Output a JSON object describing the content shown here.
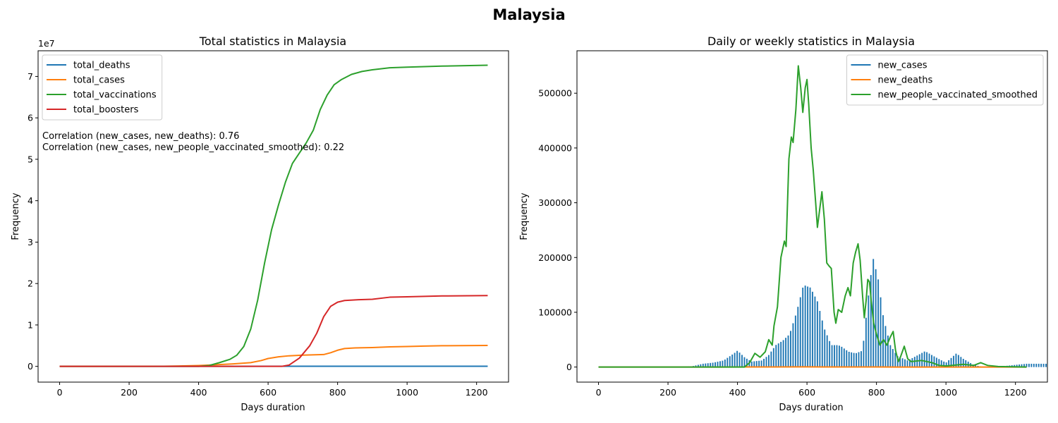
{
  "suptitle": "Malaysia",
  "chart_data": [
    {
      "type": "line",
      "title": "Total statistics in Malaysia",
      "xlabel": "Days duration",
      "ylabel": "Frequency",
      "y_offset_label": "1e7",
      "xlim": [
        -62,
        1292
      ],
      "ylim": [
        -3800000,
        76200000
      ],
      "xticks": [
        0,
        200,
        400,
        600,
        800,
        1000,
        1200
      ],
      "xtick_labels": [
        "0",
        "200",
        "400",
        "600",
        "800",
        "1000",
        "1200"
      ],
      "yticks": [
        0,
        10000000,
        20000000,
        30000000,
        40000000,
        50000000,
        60000000,
        70000000
      ],
      "ytick_labels": [
        "0",
        "1",
        "2",
        "3",
        "4",
        "5",
        "6",
        "7"
      ],
      "legend_position": "upper-left",
      "annotations": [
        "Correlation (new_cases, new_deaths): 0.76",
        "Correlation (new_cases, new_people_vaccinated_smoothed): 0.22"
      ],
      "series": [
        {
          "name": "total_deaths",
          "color": "#1f77b4",
          "points": [
            [
              0,
              0
            ],
            [
              400,
              1000
            ],
            [
              500,
              10000
            ],
            [
              600,
              25000
            ],
            [
              700,
              29000
            ],
            [
              800,
              35000
            ],
            [
              900,
              36500
            ],
            [
              1000,
              36800
            ],
            [
              1232,
              37000
            ]
          ]
        },
        {
          "name": "total_cases",
          "color": "#ff7f0e",
          "points": [
            [
              0,
              0
            ],
            [
              300,
              20000
            ],
            [
              400,
              200000
            ],
            [
              430,
              300000
            ],
            [
              500,
              600000
            ],
            [
              550,
              900000
            ],
            [
              580,
              1400000
            ],
            [
              600,
              1900000
            ],
            [
              630,
              2300000
            ],
            [
              660,
              2550000
            ],
            [
              700,
              2700000
            ],
            [
              760,
              2850000
            ],
            [
              780,
              3300000
            ],
            [
              800,
              3900000
            ],
            [
              820,
              4300000
            ],
            [
              850,
              4450000
            ],
            [
              900,
              4550000
            ],
            [
              950,
              4700000
            ],
            [
              1000,
              4800000
            ],
            [
              1050,
              4900000
            ],
            [
              1100,
              4980000
            ],
            [
              1232,
              5050000
            ]
          ]
        },
        {
          "name": "total_vaccinations",
          "color": "#2ca02c",
          "points": [
            [
              0,
              0
            ],
            [
              400,
              0
            ],
            [
              430,
              200000
            ],
            [
              460,
              900000
            ],
            [
              490,
              1700000
            ],
            [
              510,
              2700000
            ],
            [
              530,
              4800000
            ],
            [
              550,
              9000000
            ],
            [
              570,
              16000000
            ],
            [
              590,
              25000000
            ],
            [
              610,
              33000000
            ],
            [
              630,
              39000000
            ],
            [
              650,
              44500000
            ],
            [
              670,
              49000000
            ],
            [
              690,
              51500000
            ],
            [
              710,
              54000000
            ],
            [
              730,
              57000000
            ],
            [
              750,
              62000000
            ],
            [
              770,
              65500000
            ],
            [
              790,
              68000000
            ],
            [
              810,
              69200000
            ],
            [
              840,
              70500000
            ],
            [
              870,
              71200000
            ],
            [
              900,
              71600000
            ],
            [
              950,
              72100000
            ],
            [
              1000,
              72250000
            ],
            [
              1100,
              72500000
            ],
            [
              1232,
              72700000
            ]
          ]
        },
        {
          "name": "total_boosters",
          "color": "#d62728",
          "points": [
            [
              0,
              0
            ],
            [
              640,
              0
            ],
            [
              660,
              300000
            ],
            [
              690,
              2000000
            ],
            [
              720,
              5000000
            ],
            [
              740,
              8000000
            ],
            [
              760,
              12000000
            ],
            [
              780,
              14500000
            ],
            [
              800,
              15500000
            ],
            [
              820,
              15900000
            ],
            [
              860,
              16100000
            ],
            [
              900,
              16200000
            ],
            [
              950,
              16700000
            ],
            [
              1000,
              16800000
            ],
            [
              1100,
              17000000
            ],
            [
              1232,
              17100000
            ]
          ]
        }
      ]
    },
    {
      "type": "bar+line",
      "title": "Daily or weekly statistics in Malaysia",
      "xlabel": "Days duration",
      "ylabel": "Frequency",
      "xlim": [
        -62,
        1292
      ],
      "ylim": [
        -27500,
        577500
      ],
      "xticks": [
        0,
        200,
        400,
        600,
        800,
        1000,
        1200
      ],
      "xtick_labels": [
        "0",
        "200",
        "400",
        "600",
        "800",
        "1000",
        "1200"
      ],
      "yticks": [
        0,
        100000,
        200000,
        300000,
        400000,
        500000
      ],
      "ytick_labels": [
        "0",
        "100000",
        "200000",
        "300000",
        "400000",
        "500000"
      ],
      "legend_position": "upper-right",
      "bars": {
        "name": "new_cases",
        "color": "#1f77b4",
        "interval_days": 7,
        "points": [
          [
            0,
            0
          ],
          [
            80,
            0
          ],
          [
            130,
            1000
          ],
          [
            200,
            100
          ],
          [
            270,
            1500
          ],
          [
            300,
            6000
          ],
          [
            330,
            8000
          ],
          [
            360,
            12000
          ],
          [
            390,
            25000
          ],
          [
            400,
            30000
          ],
          [
            420,
            18000
          ],
          [
            440,
            10000
          ],
          [
            470,
            12000
          ],
          [
            490,
            22000
          ],
          [
            510,
            40000
          ],
          [
            530,
            48000
          ],
          [
            550,
            60000
          ],
          [
            570,
            100000
          ],
          [
            590,
            150000
          ],
          [
            610,
            145000
          ],
          [
            630,
            120000
          ],
          [
            650,
            70000
          ],
          [
            670,
            40000
          ],
          [
            690,
            40000
          ],
          [
            700,
            37000
          ],
          [
            720,
            28000
          ],
          [
            740,
            25000
          ],
          [
            760,
            30000
          ],
          [
            775,
            120000
          ],
          [
            790,
            200000
          ],
          [
            805,
            160000
          ],
          [
            820,
            90000
          ],
          [
            840,
            40000
          ],
          [
            860,
            20000
          ],
          [
            890,
            12000
          ],
          [
            920,
            22000
          ],
          [
            940,
            29000
          ],
          [
            970,
            18000
          ],
          [
            1000,
            8000
          ],
          [
            1030,
            25000
          ],
          [
            1050,
            15000
          ],
          [
            1080,
            4000
          ],
          [
            1100,
            1000
          ],
          [
            1150,
            500
          ],
          [
            1200,
            4000
          ],
          [
            1232,
            6000
          ]
        ]
      },
      "series": [
        {
          "name": "new_deaths",
          "color": "#ff7f0e",
          "points": [
            [
              0,
              0
            ],
            [
              420,
              100
            ],
            [
              500,
              200
            ],
            [
              580,
              300
            ],
            [
              600,
              400
            ],
            [
              650,
              250
            ],
            [
              700,
              200
            ],
            [
              800,
              150
            ],
            [
              900,
              50
            ],
            [
              1000,
              20
            ],
            [
              1232,
              0
            ]
          ]
        },
        {
          "name": "new_people_vaccinated_smoothed",
          "color": "#2ca02c",
          "points": [
            [
              0,
              0
            ],
            [
              420,
              0
            ],
            [
              435,
              8000
            ],
            [
              450,
              25000
            ],
            [
              465,
              18000
            ],
            [
              480,
              28000
            ],
            [
              490,
              50000
            ],
            [
              500,
              40000
            ],
            [
              505,
              75000
            ],
            [
              515,
              110000
            ],
            [
              525,
              200000
            ],
            [
              535,
              230000
            ],
            [
              540,
              220000
            ],
            [
              548,
              380000
            ],
            [
              555,
              420000
            ],
            [
              560,
              410000
            ],
            [
              568,
              470000
            ],
            [
              575,
              550000
            ],
            [
              582,
              510000
            ],
            [
              588,
              465000
            ],
            [
              595,
              510000
            ],
            [
              600,
              525000
            ],
            [
              605,
              480000
            ],
            [
              612,
              400000
            ],
            [
              618,
              360000
            ],
            [
              625,
              300000
            ],
            [
              630,
              255000
            ],
            [
              637,
              290000
            ],
            [
              643,
              320000
            ],
            [
              650,
              270000
            ],
            [
              657,
              190000
            ],
            [
              663,
              185000
            ],
            [
              670,
              180000
            ],
            [
              678,
              100000
            ],
            [
              683,
              80000
            ],
            [
              690,
              105000
            ],
            [
              700,
              100000
            ],
            [
              710,
              130000
            ],
            [
              718,
              145000
            ],
            [
              725,
              130000
            ],
            [
              733,
              190000
            ],
            [
              740,
              210000
            ],
            [
              747,
              225000
            ],
            [
              753,
              195000
            ],
            [
              760,
              130000
            ],
            [
              765,
              90000
            ],
            [
              770,
              120000
            ],
            [
              775,
              160000
            ],
            [
              780,
              155000
            ],
            [
              785,
              120000
            ],
            [
              792,
              80000
            ],
            [
              800,
              60000
            ],
            [
              810,
              40000
            ],
            [
              820,
              50000
            ],
            [
              830,
              40000
            ],
            [
              840,
              55000
            ],
            [
              848,
              65000
            ],
            [
              855,
              30000
            ],
            [
              863,
              10000
            ],
            [
              870,
              20000
            ],
            [
              880,
              38000
            ],
            [
              890,
              15000
            ],
            [
              900,
              10000
            ],
            [
              930,
              12000
            ],
            [
              960,
              8000
            ],
            [
              980,
              3000
            ],
            [
              1000,
              2000
            ],
            [
              1050,
              5000
            ],
            [
              1080,
              3000
            ],
            [
              1100,
              8000
            ],
            [
              1120,
              3000
            ],
            [
              1150,
              1000
            ],
            [
              1232,
              0
            ]
          ]
        }
      ]
    }
  ]
}
